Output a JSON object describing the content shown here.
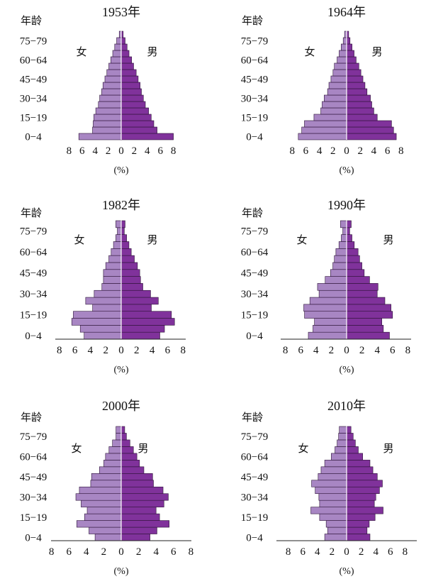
{
  "labels": {
    "age": "年龄",
    "female": "女",
    "male": "男",
    "unit": "(%)"
  },
  "colors": {
    "female": "#a886c3",
    "male": "#80329b",
    "outline": "#2b1236",
    "axis": "#222222"
  },
  "age_tick_labels": [
    "75−79",
    "60−64",
    "45−49",
    "30−34",
    "15−19",
    "0−4"
  ],
  "chart_data": [
    {
      "type": "bar",
      "title": "1953年",
      "xlabel": "(%)",
      "x_ticks": [
        8,
        6,
        4,
        2,
        0,
        2,
        4,
        6,
        8
      ],
      "xlim": [
        -8,
        8
      ],
      "categories": [
        "0-4",
        "5-9",
        "10-14",
        "15-19",
        "20-24",
        "25-29",
        "30-34",
        "35-39",
        "40-44",
        "45-49",
        "50-54",
        "55-59",
        "60-64",
        "65-69",
        "70-74",
        "75-79",
        "80+"
      ],
      "series": [
        {
          "name": "女",
          "values": [
            -6.5,
            -4.4,
            -4.3,
            -4.2,
            -3.9,
            -3.5,
            -3.3,
            -3.0,
            -2.8,
            -2.5,
            -2.2,
            -1.9,
            -1.6,
            -1.3,
            -1.0,
            -0.7,
            -0.3
          ]
        },
        {
          "name": "男",
          "values": [
            8.0,
            5.5,
            5.0,
            4.6,
            4.2,
            3.7,
            3.4,
            3.1,
            2.9,
            2.6,
            2.3,
            1.9,
            1.6,
            1.2,
            0.9,
            0.6,
            0.3
          ]
        }
      ]
    },
    {
      "type": "bar",
      "title": "1964年",
      "xlabel": "(%)",
      "x_ticks": [
        8,
        6,
        4,
        2,
        0,
        2,
        4,
        6,
        8
      ],
      "xlim": [
        -8,
        8
      ],
      "categories": [
        "0-4",
        "5-9",
        "10-14",
        "15-19",
        "20-24",
        "25-29",
        "30-34",
        "35-39",
        "40-44",
        "45-49",
        "50-54",
        "55-59",
        "60-64",
        "65-69",
        "70-74",
        "75-79",
        "80+"
      ],
      "series": [
        {
          "name": "女",
          "values": [
            -7.1,
            -6.6,
            -6.2,
            -4.8,
            -3.8,
            -3.6,
            -3.3,
            -2.8,
            -2.6,
            -2.3,
            -2.0,
            -1.8,
            -1.4,
            -1.1,
            -0.8,
            -0.5,
            -0.3
          ]
        },
        {
          "name": "男",
          "values": [
            7.3,
            6.9,
            6.6,
            4.5,
            4.0,
            3.7,
            3.5,
            3.0,
            2.7,
            2.4,
            2.1,
            1.8,
            1.4,
            1.1,
            0.8,
            0.5,
            0.3
          ]
        }
      ]
    },
    {
      "type": "bar",
      "title": "1982年",
      "xlabel": "(%)",
      "x_ticks": [
        8,
        6,
        4,
        2,
        0,
        2,
        4,
        6,
        8
      ],
      "xlim": [
        -8,
        8
      ],
      "categories": [
        "0-4",
        "5-9",
        "10-14",
        "15-19",
        "20-24",
        "25-29",
        "30-34",
        "35-39",
        "40-44",
        "45-49",
        "50-54",
        "55-59",
        "60-64",
        "65-69",
        "70-74",
        "75-79",
        "80+"
      ],
      "series": [
        {
          "name": "女",
          "values": [
            -4.8,
            -5.3,
            -6.4,
            -6.2,
            -3.7,
            -4.6,
            -3.5,
            -2.5,
            -2.3,
            -2.3,
            -2.0,
            -1.6,
            -1.3,
            -1.0,
            -0.7,
            -0.5,
            -0.7
          ]
        },
        {
          "name": "男",
          "values": [
            5.0,
            5.6,
            6.9,
            6.5,
            3.9,
            4.8,
            3.8,
            2.8,
            2.5,
            2.4,
            2.1,
            1.7,
            1.3,
            1.0,
            0.7,
            0.4,
            0.5
          ]
        }
      ]
    },
    {
      "type": "bar",
      "title": "1990年",
      "xlabel": "(%)",
      "x_ticks": [
        8,
        6,
        4,
        2,
        0,
        2,
        4,
        6,
        8
      ],
      "xlim": [
        -8,
        8
      ],
      "categories": [
        "0-4",
        "5-9",
        "10-14",
        "15-19",
        "20-24",
        "25-29",
        "30-34",
        "35-39",
        "40-44",
        "45-49",
        "50-54",
        "55-59",
        "60-64",
        "65-69",
        "70-74",
        "75-79",
        "80+"
      ],
      "series": [
        {
          "name": "女",
          "values": [
            -5.0,
            -4.4,
            -4.2,
            -5.5,
            -5.6,
            -4.8,
            -3.6,
            -3.8,
            -2.8,
            -2.1,
            -1.8,
            -1.6,
            -1.4,
            -1.0,
            -0.7,
            -0.5,
            -0.8
          ]
        },
        {
          "name": "男",
          "values": [
            5.6,
            4.8,
            4.6,
            6.0,
            5.8,
            5.0,
            4.0,
            4.1,
            3.0,
            2.3,
            2.0,
            1.7,
            1.5,
            1.0,
            0.7,
            0.4,
            0.6
          ]
        }
      ]
    },
    {
      "type": "bar",
      "title": "2000年",
      "xlabel": "(%)",
      "x_ticks": [
        8,
        6,
        4,
        2,
        0,
        2,
        4,
        6,
        8
      ],
      "xlim": [
        -8,
        8
      ],
      "categories": [
        "0-4",
        "5-9",
        "10-14",
        "15-19",
        "20-24",
        "25-29",
        "30-34",
        "35-39",
        "40-44",
        "45-49",
        "50-54",
        "55-59",
        "60-64",
        "65-69",
        "70-74",
        "75-79",
        "80+"
      ],
      "series": [
        {
          "name": "女",
          "values": [
            -3.0,
            -3.7,
            -5.1,
            -4.2,
            -3.9,
            -4.6,
            -5.2,
            -4.8,
            -3.5,
            -3.4,
            -2.5,
            -2.0,
            -1.8,
            -1.4,
            -1.0,
            -0.6,
            -0.6
          ]
        },
        {
          "name": "男",
          "values": [
            3.3,
            4.1,
            5.5,
            4.4,
            4.0,
            4.9,
            5.4,
            4.8,
            3.7,
            3.6,
            2.6,
            2.1,
            1.8,
            1.4,
            1.0,
            0.6,
            0.4
          ]
        }
      ]
    },
    {
      "type": "bar",
      "title": "2010年",
      "xlabel": "(%)",
      "x_ticks": [
        8,
        6,
        4,
        2,
        0,
        2,
        4,
        6,
        8
      ],
      "xlim": [
        -8,
        8
      ],
      "categories": [
        "0-4",
        "5-9",
        "10-14",
        "15-19",
        "20-24",
        "25-29",
        "30-34",
        "35-39",
        "40-44",
        "45-49",
        "50-54",
        "55-59",
        "60-64",
        "65-69",
        "70-74",
        "75-79",
        "80+"
      ],
      "series": [
        {
          "name": "女",
          "values": [
            -3.0,
            -2.6,
            -2.8,
            -3.7,
            -4.9,
            -3.7,
            -3.8,
            -4.3,
            -4.8,
            -3.9,
            -3.5,
            -3.0,
            -2.1,
            -1.6,
            -1.3,
            -1.1,
            -1.0
          ]
        },
        {
          "name": "男",
          "values": [
            3.2,
            2.8,
            3.1,
            3.9,
            5.0,
            3.8,
            4.0,
            4.5,
            4.9,
            4.2,
            3.6,
            3.2,
            2.2,
            1.6,
            1.2,
            0.9,
            0.6
          ]
        }
      ]
    }
  ]
}
